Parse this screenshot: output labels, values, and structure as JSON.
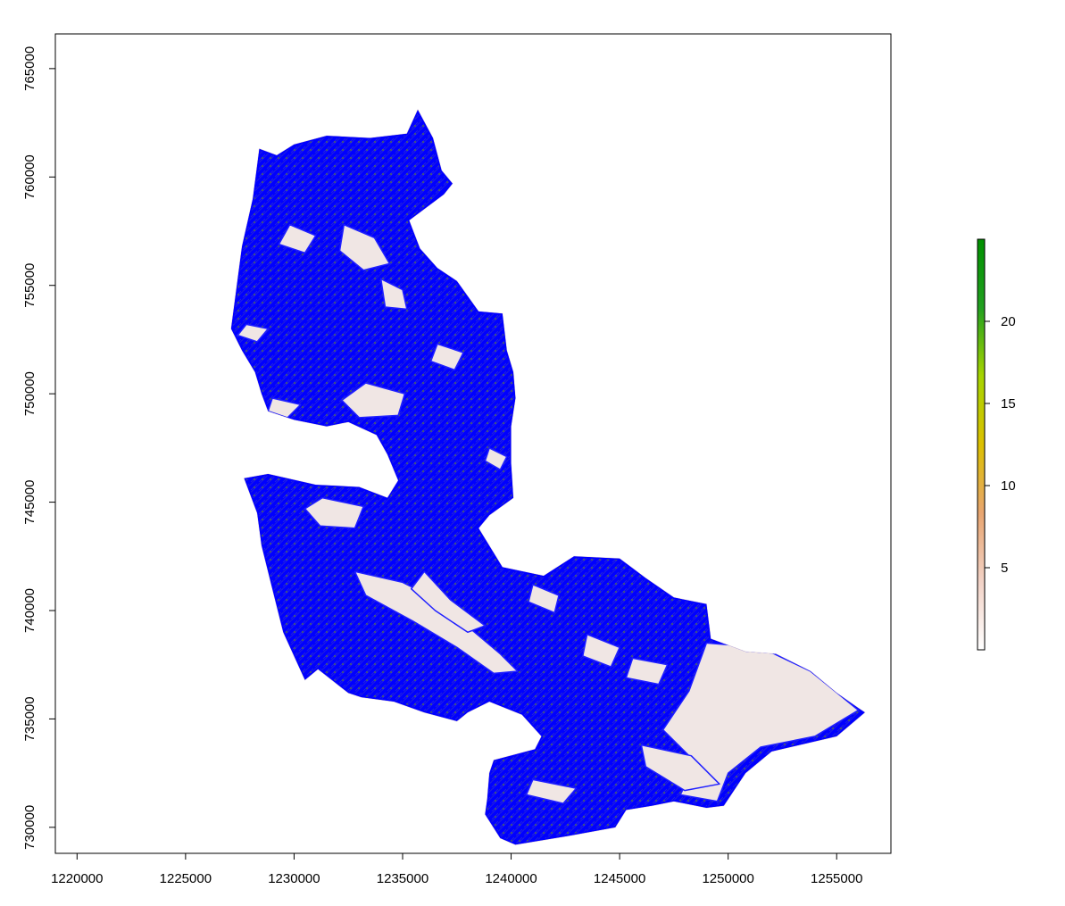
{
  "chart_data": {
    "type": "raster-map",
    "xlim": [
      1219000,
      1257500
    ],
    "ylim": [
      728800,
      766600
    ],
    "x_ticks": [
      1220000,
      1225000,
      1230000,
      1235000,
      1240000,
      1245000,
      1250000,
      1255000
    ],
    "x_tick_labels": [
      "1220000",
      "1225000",
      "1230000",
      "1235000",
      "1240000",
      "1245000",
      "1250000",
      "1255000"
    ],
    "y_ticks": [
      730000,
      735000,
      740000,
      745000,
      750000,
      755000,
      760000,
      765000
    ],
    "y_tick_labels": [
      "730000",
      "735000",
      "740000",
      "745000",
      "750000",
      "755000",
      "760000",
      "765000"
    ],
    "legend": {
      "placement": "right",
      "range": [
        0,
        25
      ],
      "ticks": [
        5,
        10,
        15,
        20
      ],
      "tick_labels": [
        "5",
        "10",
        "15",
        "20"
      ],
      "colors": [
        "#ffffff",
        "#f2d2c6",
        "#e8a570",
        "#dcc000",
        "#a6d400",
        "#22a020",
        "#009000"
      ]
    },
    "grid": false,
    "region": {
      "fill_color": "#f0e6e4",
      "overlay_color": "#0000ff",
      "outline": [
        [
          1227100,
          753000
        ],
        [
          1227600,
          756800
        ],
        [
          1228100,
          759000
        ],
        [
          1228400,
          761300
        ],
        [
          1229200,
          761000
        ],
        [
          1230000,
          761500
        ],
        [
          1231500,
          761900
        ],
        [
          1233500,
          761800
        ],
        [
          1235200,
          762000
        ],
        [
          1235700,
          763100
        ],
        [
          1236400,
          761800
        ],
        [
          1236800,
          760300
        ],
        [
          1237300,
          759700
        ],
        [
          1236900,
          759200
        ],
        [
          1235300,
          758000
        ],
        [
          1235800,
          756700
        ],
        [
          1236600,
          755800
        ],
        [
          1237500,
          755200
        ],
        [
          1238500,
          753800
        ],
        [
          1239600,
          753700
        ],
        [
          1239800,
          752000
        ],
        [
          1240100,
          751000
        ],
        [
          1240200,
          749800
        ],
        [
          1240000,
          748500
        ],
        [
          1240000,
          746800
        ],
        [
          1240100,
          745200
        ],
        [
          1239000,
          744400
        ],
        [
          1238500,
          743800
        ],
        [
          1239600,
          742000
        ],
        [
          1241500,
          741600
        ],
        [
          1242900,
          742500
        ],
        [
          1245000,
          742400
        ],
        [
          1246200,
          741500
        ],
        [
          1247500,
          740600
        ],
        [
          1249000,
          740300
        ],
        [
          1249200,
          738700
        ],
        [
          1250800,
          738100
        ],
        [
          1252200,
          738000
        ],
        [
          1253800,
          737200
        ],
        [
          1255000,
          736200
        ],
        [
          1256000,
          735500
        ],
        [
          1256300,
          735300
        ],
        [
          1255000,
          734200
        ],
        [
          1252000,
          733500
        ],
        [
          1250800,
          732500
        ],
        [
          1249800,
          731000
        ],
        [
          1249000,
          730900
        ],
        [
          1247500,
          731200
        ],
        [
          1246500,
          731000
        ],
        [
          1245300,
          730800
        ],
        [
          1244800,
          730000
        ],
        [
          1242600,
          729600
        ],
        [
          1240200,
          729200
        ],
        [
          1239500,
          729500
        ],
        [
          1238800,
          730600
        ],
        [
          1238900,
          731300
        ],
        [
          1239000,
          732500
        ],
        [
          1239200,
          733100
        ],
        [
          1241100,
          733600
        ],
        [
          1241400,
          734200
        ],
        [
          1240500,
          735200
        ],
        [
          1239000,
          735800
        ],
        [
          1238000,
          735300
        ],
        [
          1237500,
          734900
        ],
        [
          1236000,
          735300
        ],
        [
          1234600,
          735800
        ],
        [
          1233100,
          736000
        ],
        [
          1232500,
          736200
        ],
        [
          1231100,
          737300
        ],
        [
          1230500,
          736800
        ],
        [
          1229500,
          739000
        ],
        [
          1229000,
          741000
        ],
        [
          1228500,
          743000
        ],
        [
          1228300,
          744500
        ],
        [
          1227700,
          746100
        ],
        [
          1228800,
          746300
        ],
        [
          1231000,
          745800
        ],
        [
          1233000,
          745700
        ],
        [
          1234300,
          745200
        ],
        [
          1234800,
          746000
        ],
        [
          1234300,
          747200
        ],
        [
          1233800,
          748100
        ],
        [
          1232500,
          748700
        ],
        [
          1231500,
          748500
        ],
        [
          1230000,
          748800
        ],
        [
          1228800,
          749200
        ],
        [
          1228500,
          750000
        ],
        [
          1228200,
          751000
        ],
        [
          1227600,
          752000
        ],
        [
          1227100,
          753000
        ]
      ]
    }
  }
}
